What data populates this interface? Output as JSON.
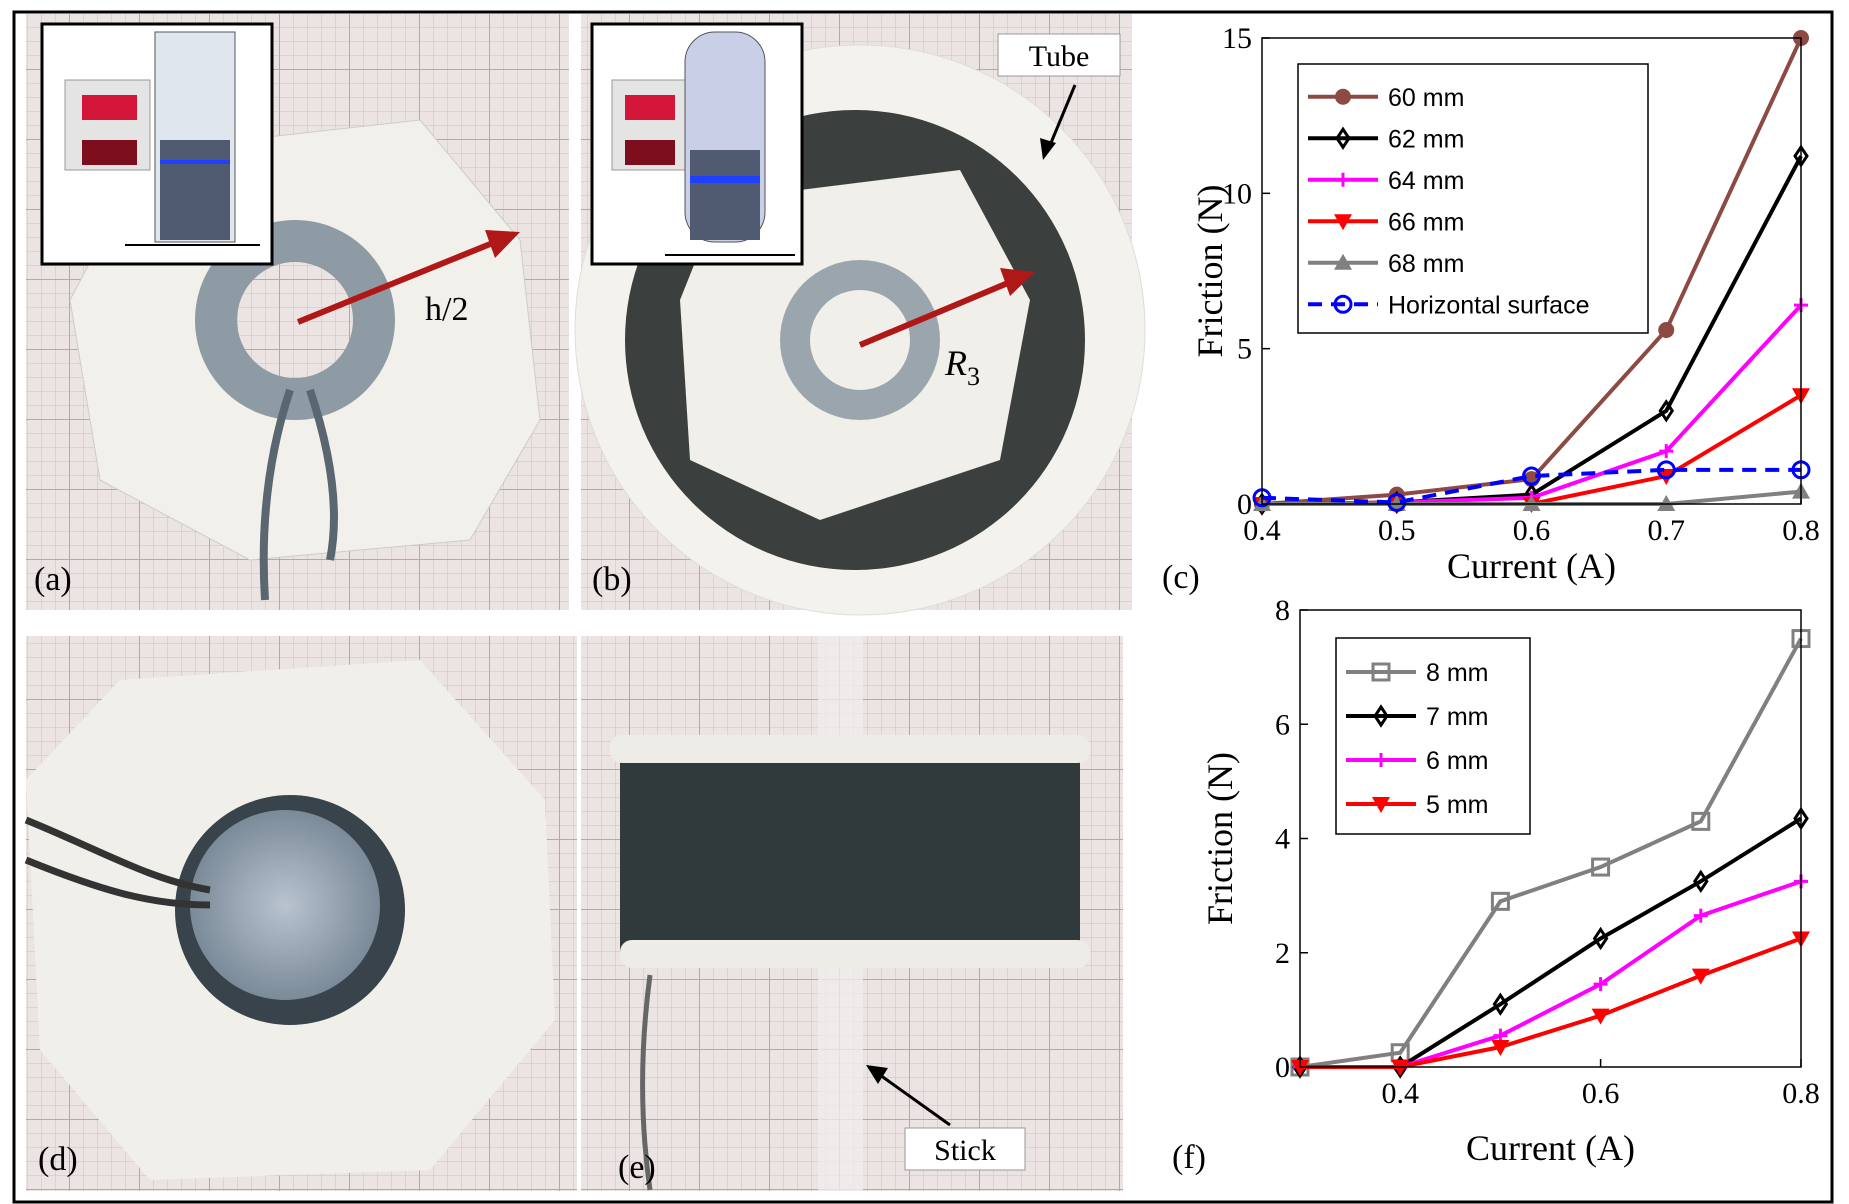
{
  "panels": {
    "a": {
      "label": "(a)",
      "arrow_label": "h/2"
    },
    "b": {
      "label": "(b)",
      "arrow_label": "R",
      "arrow_label_sub": "3",
      "tube_label": "Tube"
    },
    "c": {
      "label": "(c)"
    },
    "d": {
      "label": "(d)"
    },
    "e": {
      "label": "(e)",
      "stick_label": "Stick"
    },
    "f": {
      "label": "(f)"
    }
  },
  "chart_data": [
    {
      "type": "line",
      "x_label": "Current (A)",
      "y_label": "Friction (N)",
      "x": [
        0.4,
        0.5,
        0.6,
        0.7,
        0.8
      ],
      "xlim": [
        0.4,
        0.8
      ],
      "xticks": [
        0.4,
        0.5,
        0.6,
        0.7,
        0.8
      ],
      "ylim": [
        0,
        15
      ],
      "yticks": [
        0,
        5,
        10,
        15
      ],
      "legend": "upper left",
      "series": [
        {
          "name": "60 mm",
          "color": "#8c4a42",
          "marker": "circle-filled",
          "linestyle": "solid",
          "values": [
            0,
            0.3,
            0.8,
            5.6,
            15
          ]
        },
        {
          "name": "62 mm",
          "color": "#000000",
          "marker": "diamond-open",
          "linestyle": "solid",
          "values": [
            0,
            0.05,
            0.3,
            3.0,
            11.2
          ]
        },
        {
          "name": "64 mm",
          "color": "#ff00ff",
          "marker": "plus",
          "linestyle": "solid",
          "values": [
            0,
            0.05,
            0.2,
            1.7,
            6.4
          ]
        },
        {
          "name": "66 mm",
          "color": "#ff0000",
          "marker": "triangle-down-filled",
          "linestyle": "solid",
          "values": [
            0,
            0,
            0,
            0.9,
            3.5
          ]
        },
        {
          "name": "68 mm",
          "color": "#808080",
          "marker": "triangle-up-filled",
          "linestyle": "solid",
          "values": [
            0,
            0,
            0,
            0,
            0.4
          ]
        },
        {
          "name": "Horizontal surface",
          "color": "#0000ff",
          "marker": "circle-open",
          "linestyle": "dashed",
          "values": [
            0.2,
            0.05,
            0.9,
            1.1,
            1.1
          ]
        }
      ]
    },
    {
      "type": "line",
      "x_label": "Current (A)",
      "y_label": "Friction (N)",
      "x": [
        0.3,
        0.4,
        0.5,
        0.6,
        0.7,
        0.8
      ],
      "xlim": [
        0.3,
        0.8
      ],
      "xticks": [
        0.4,
        0.6,
        0.8
      ],
      "ylim": [
        0,
        8
      ],
      "yticks": [
        0,
        2,
        4,
        6,
        8
      ],
      "legend": "upper left",
      "series": [
        {
          "name": "8 mm",
          "color": "#808080",
          "marker": "square-open",
          "linestyle": "solid",
          "values": [
            0,
            0.25,
            2.9,
            3.5,
            4.3,
            7.5
          ]
        },
        {
          "name": "7 mm",
          "color": "#000000",
          "marker": "diamond-open",
          "linestyle": "solid",
          "values": [
            0,
            0,
            1.1,
            2.25,
            3.25,
            4.35
          ]
        },
        {
          "name": "6 mm",
          "color": "#ff00ff",
          "marker": "plus",
          "linestyle": "solid",
          "values": [
            0,
            0,
            0.55,
            1.45,
            2.65,
            3.25
          ]
        },
        {
          "name": "5 mm",
          "color": "#ff0000",
          "marker": "triangle-down-filled",
          "linestyle": "solid",
          "values": [
            0,
            0,
            0.35,
            0.9,
            1.6,
            2.25
          ]
        }
      ]
    }
  ]
}
